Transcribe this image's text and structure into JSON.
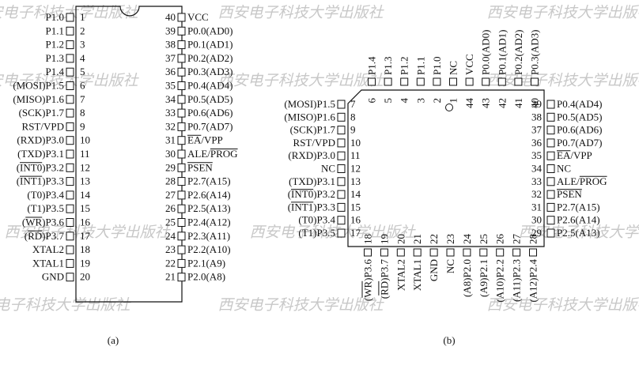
{
  "watermark": "西安电子科技大学出版社",
  "captions": {
    "a": "(a)",
    "b": "(b)"
  },
  "dip": {
    "left": [
      {
        "num": "1",
        "label": "P1.0"
      },
      {
        "num": "2",
        "label": "P1.1"
      },
      {
        "num": "3",
        "label": "P1.2"
      },
      {
        "num": "4",
        "label": "P1.3"
      },
      {
        "num": "5",
        "label": "P1.4"
      },
      {
        "num": "6",
        "label": "(MOSI)P1.5"
      },
      {
        "num": "7",
        "label": "(MISO)P1.6"
      },
      {
        "num": "8",
        "label": "(SCK)P1.7"
      },
      {
        "num": "9",
        "label": "RST/VPD"
      },
      {
        "num": "10",
        "label": "(RXD)P3.0"
      },
      {
        "num": "11",
        "label": "(TXD)P3.1"
      },
      {
        "num": "12",
        "label": "(INT0)P3.2"
      },
      {
        "num": "13",
        "label": "(INT1)P3.3"
      },
      {
        "num": "14",
        "label": "(T0)P3.4"
      },
      {
        "num": "15",
        "label": "(T1)P3.5"
      },
      {
        "num": "16",
        "label": "(WR)P3.6"
      },
      {
        "num": "17",
        "label": "(RD)P3.7"
      },
      {
        "num": "18",
        "label": "XTAL2"
      },
      {
        "num": "19",
        "label": "XTAL1"
      },
      {
        "num": "20",
        "label": "GND"
      }
    ],
    "right": [
      {
        "num": "40",
        "label": "VCC"
      },
      {
        "num": "39",
        "label": "P0.0(AD0)"
      },
      {
        "num": "38",
        "label": "P0.1(AD1)"
      },
      {
        "num": "37",
        "label": "P0.2(AD2)"
      },
      {
        "num": "36",
        "label": "P0.3(AD3)"
      },
      {
        "num": "35",
        "label": "P0.4(AD4)"
      },
      {
        "num": "34",
        "label": "P0.5(AD5)"
      },
      {
        "num": "33",
        "label": "P0.6(AD6)"
      },
      {
        "num": "32",
        "label": "P0.7(AD7)"
      },
      {
        "num": "31",
        "label": "EA/VPP"
      },
      {
        "num": "30",
        "label": "ALE/PROG"
      },
      {
        "num": "29",
        "label": "PSEN"
      },
      {
        "num": "28",
        "label": "P2.7(A15)"
      },
      {
        "num": "27",
        "label": "P2.6(A14)"
      },
      {
        "num": "26",
        "label": "P2.5(A13)"
      },
      {
        "num": "25",
        "label": "P2.4(A12)"
      },
      {
        "num": "24",
        "label": "P2.3(A11)"
      },
      {
        "num": "23",
        "label": "P2.2(A10)"
      },
      {
        "num": "22",
        "label": "P2.1(A9)"
      },
      {
        "num": "21",
        "label": "P2.0(A8)"
      }
    ]
  },
  "plcc": {
    "top": [
      {
        "num": "6",
        "label": "P1.4"
      },
      {
        "num": "5",
        "label": "P1.3"
      },
      {
        "num": "4",
        "label": "P1.2"
      },
      {
        "num": "3",
        "label": "P1.1"
      },
      {
        "num": "2",
        "label": "P1.0"
      },
      {
        "num": "1",
        "label": "NC"
      },
      {
        "num": "44",
        "label": "VCC"
      },
      {
        "num": "43",
        "label": "P0.0(AD0)"
      },
      {
        "num": "42",
        "label": "P0.1(AD1)"
      },
      {
        "num": "41",
        "label": "P0.2(AD2)"
      },
      {
        "num": "40",
        "label": "P0.3(AD3)"
      }
    ],
    "left": [
      {
        "num": "7",
        "label": "(MOSI)P1.5"
      },
      {
        "num": "8",
        "label": "(MISO)P1.6"
      },
      {
        "num": "9",
        "label": "(SCK)P1.7"
      },
      {
        "num": "10",
        "label": "RST/VPD"
      },
      {
        "num": "11",
        "label": "(RXD)P3.0"
      },
      {
        "num": "12",
        "label": "NC"
      },
      {
        "num": "13",
        "label": "(TXD)P3.1"
      },
      {
        "num": "14",
        "label": "(INT0)P3.2"
      },
      {
        "num": "15",
        "label": "(INT1)P3.3"
      },
      {
        "num": "16",
        "label": "(T0)P3.4"
      },
      {
        "num": "17",
        "label": "(T1)P3.5"
      }
    ],
    "right": [
      {
        "num": "39",
        "label": "P0.4(AD4)"
      },
      {
        "num": "38",
        "label": "P0.5(AD5)"
      },
      {
        "num": "37",
        "label": "P0.6(AD6)"
      },
      {
        "num": "36",
        "label": "P0.7(AD7)"
      },
      {
        "num": "35",
        "label": "EA/VPP"
      },
      {
        "num": "34",
        "label": "NC"
      },
      {
        "num": "33",
        "label": "ALE/PROG"
      },
      {
        "num": "32",
        "label": "PSEN"
      },
      {
        "num": "31",
        "label": "P2.7(A15)"
      },
      {
        "num": "30",
        "label": "P2.6(A14)"
      },
      {
        "num": "29",
        "label": "P2.5(A13)"
      }
    ],
    "bottom": [
      {
        "num": "18",
        "label": "(WR)P3.6"
      },
      {
        "num": "19",
        "label": "(RD)P3.7"
      },
      {
        "num": "20",
        "label": "XTAL2"
      },
      {
        "num": "21",
        "label": "XTAL1"
      },
      {
        "num": "22",
        "label": "GND"
      },
      {
        "num": "23",
        "label": "NC"
      },
      {
        "num": "24",
        "label": "(A8)P2.0"
      },
      {
        "num": "25",
        "label": "(A9)P2.1"
      },
      {
        "num": "26",
        "label": "(A10)P2.2"
      },
      {
        "num": "27",
        "label": "(A11)P2.3"
      },
      {
        "num": "28",
        "label": "(A12)P2.4"
      }
    ]
  }
}
